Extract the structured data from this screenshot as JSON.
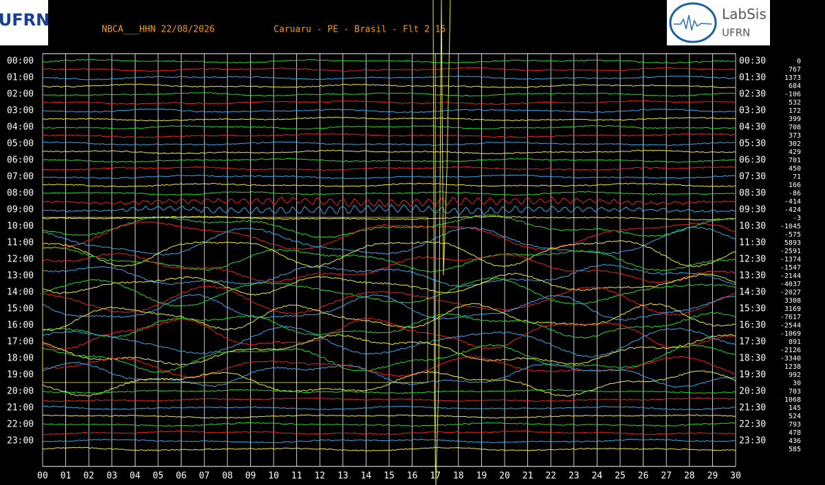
{
  "header": {
    "station": "NBCA___HHN 22/08/2026",
    "location": "Caruaru - PE - Brasil - Flt 2 15",
    "left_logo": "UFRN",
    "right_logo_title": "LabSis",
    "right_logo_subtitle": "UFRN"
  },
  "left_labels": [
    "00:00",
    "01:00",
    "02:00",
    "03:00",
    "04:00",
    "05:00",
    "06:00",
    "07:00",
    "08:00",
    "09:00",
    "10:00",
    "11:00",
    "12:00",
    "13:00",
    "14:00",
    "15:00",
    "16:00",
    "17:00",
    "18:00",
    "19:00",
    "20:00",
    "21:00",
    "22:00",
    "23:00"
  ],
  "right_labels": [
    "00:30",
    "01:30",
    "02:30",
    "03:30",
    "04:30",
    "05:30",
    "06:30",
    "07:30",
    "08:30",
    "09:30",
    "10:30",
    "11:30",
    "12:30",
    "13:30",
    "14:30",
    "15:30",
    "16:30",
    "17:30",
    "18:30",
    "19:30",
    "20:30",
    "21:30",
    "22:30",
    "23:30"
  ],
  "offsets": [
    0,
    767,
    1373,
    684,
    -106,
    532,
    172,
    399,
    708,
    373,
    302,
    429,
    701,
    450,
    71,
    166,
    -86,
    -414,
    -424,
    -3,
    -1045,
    -575,
    5893,
    -2591,
    -1374,
    -1547,
    -2144,
    -4037,
    -2027,
    3308,
    3169,
    -7617,
    -2544,
    -1069,
    891,
    -2126,
    -3340,
    1238,
    992,
    30,
    703,
    1068,
    145,
    524,
    793,
    478,
    436,
    585
  ],
  "x_ticks": [
    "00",
    "01",
    "02",
    "03",
    "04",
    "05",
    "06",
    "07",
    "08",
    "09",
    "10",
    "11",
    "12",
    "13",
    "14",
    "15",
    "16",
    "17",
    "18",
    "19",
    "20",
    "21",
    "22",
    "23",
    "24",
    "25",
    "26",
    "27",
    "28",
    "29",
    "30"
  ]
}
